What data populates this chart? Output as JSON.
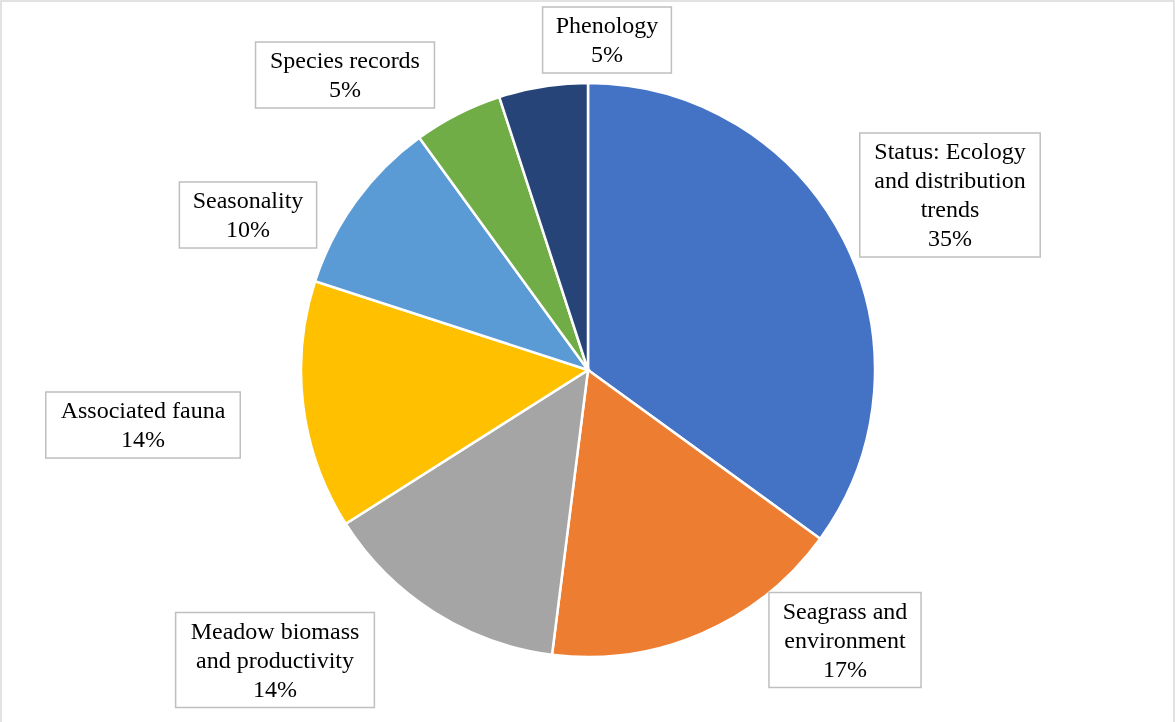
{
  "chart_data": {
    "type": "pie",
    "categories": [
      "Status: Ecology and distribution trends",
      "Seagrass and environment",
      "Meadow biomass and productivity",
      "Associated fauna",
      "Seasonality",
      "Species records",
      "Phenology"
    ],
    "values": [
      35,
      17,
      14,
      14,
      10,
      5,
      5
    ],
    "value_labels": [
      "35%",
      "17%",
      "14%",
      "14%",
      "10%",
      "5%",
      "5%"
    ],
    "colors": [
      "#4472c4",
      "#ed7d31",
      "#a5a5a5",
      "#ffc000",
      "#5b9bd5",
      "#70ad47",
      "#264478"
    ]
  }
}
